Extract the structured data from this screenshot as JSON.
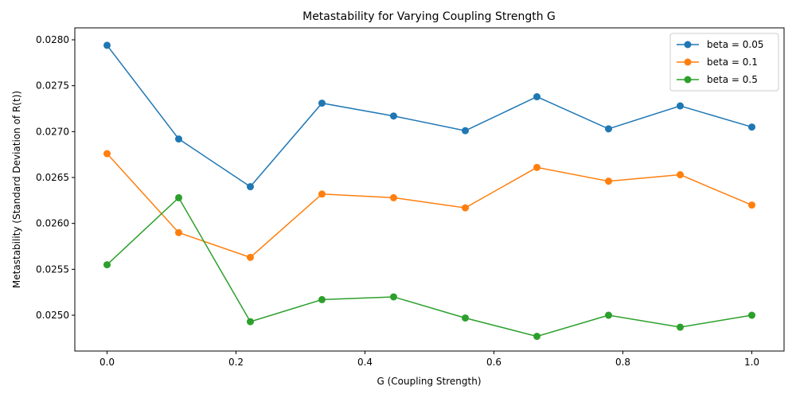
{
  "chart_data": {
    "type": "line",
    "title": "Metastability for Varying Coupling Strength G",
    "xlabel": "G (Coupling Strength)",
    "ylabel": "Metastability (Standard Deviation of R(t))",
    "x": [
      0.0,
      0.1111,
      0.2222,
      0.3333,
      0.4444,
      0.5556,
      0.6667,
      0.7778,
      0.8889,
      1.0
    ],
    "xlim": [
      -0.05,
      1.05
    ],
    "ylim": [
      0.02461,
      0.02813
    ],
    "xticks": [
      0.0,
      0.2,
      0.4,
      0.6,
      0.8,
      1.0
    ],
    "xtick_labels": [
      "0.0",
      "0.2",
      "0.4",
      "0.6",
      "0.8",
      "1.0"
    ],
    "yticks": [
      0.025,
      0.0255,
      0.026,
      0.0265,
      0.027,
      0.0275,
      0.028
    ],
    "ytick_labels": [
      "0.0250",
      "0.0255",
      "0.0260",
      "0.0265",
      "0.0270",
      "0.0275",
      "0.0280"
    ],
    "grid": false,
    "legend_position": "top-right",
    "series": [
      {
        "name": "beta = 0.05",
        "color": "#1f77b4",
        "values": [
          0.02794,
          0.02692,
          0.0264,
          0.02731,
          0.02717,
          0.02701,
          0.02738,
          0.02703,
          0.02728,
          0.02705
        ]
      },
      {
        "name": "beta = 0.1",
        "color": "#ff7f0e",
        "values": [
          0.02676,
          0.0259,
          0.02563,
          0.02632,
          0.02628,
          0.02617,
          0.02661,
          0.02646,
          0.02653,
          0.0262
        ]
      },
      {
        "name": "beta = 0.5",
        "color": "#2ca02c",
        "values": [
          0.02555,
          0.02628,
          0.02493,
          0.02517,
          0.0252,
          0.02497,
          0.02477,
          0.025,
          0.02487,
          0.025
        ]
      }
    ]
  }
}
